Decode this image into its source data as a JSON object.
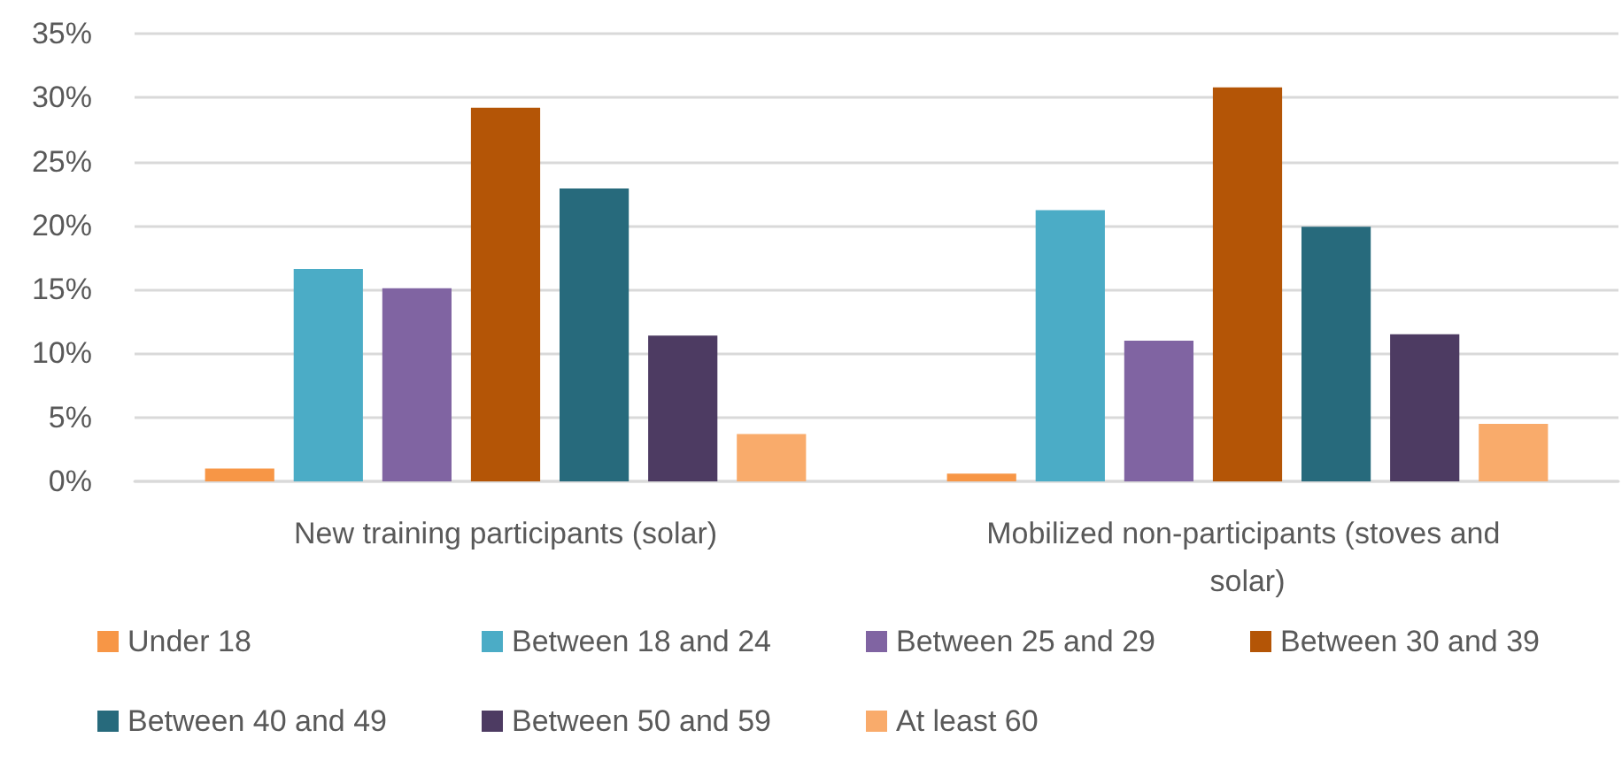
{
  "chart_data": {
    "type": "bar",
    "categories": [
      "New training participants (solar)",
      "Mobilized non-participants (stoves and solar)"
    ],
    "series": [
      {
        "name": "Under 18",
        "color": "#f79646",
        "values": [
          1.0,
          0.6
        ]
      },
      {
        "name": "Between 18 and 24",
        "color": "#4bacc6",
        "values": [
          16.6,
          21.2
        ]
      },
      {
        "name": "Between 25 and 29",
        "color": "#8064a2",
        "values": [
          15.1,
          11.0
        ]
      },
      {
        "name": "Between 30 and 39",
        "color": "#b45506",
        "values": [
          29.2,
          30.8
        ]
      },
      {
        "name": "Between 40 and 49",
        "color": "#276a7c",
        "values": [
          22.9,
          19.9
        ]
      },
      {
        "name": "Between 50 and 59",
        "color": "#4d3b62",
        "values": [
          11.4,
          11.5
        ]
      },
      {
        "name": "At least 60",
        "color": "#f9ab6b",
        "values": [
          3.7,
          4.5
        ]
      }
    ],
    "ylim": [
      0,
      35
    ],
    "yticks": [
      {
        "value": 0,
        "label": "0%"
      },
      {
        "value": 5,
        "label": "5%"
      },
      {
        "value": 10,
        "label": "10%"
      },
      {
        "value": 15,
        "label": "15%"
      },
      {
        "value": 20,
        "label": "20%"
      },
      {
        "value": 25,
        "label": "25%"
      },
      {
        "value": 30,
        "label": "30%"
      },
      {
        "value": 35,
        "label": "35%"
      }
    ],
    "grid": "y",
    "legend": "bottom"
  }
}
